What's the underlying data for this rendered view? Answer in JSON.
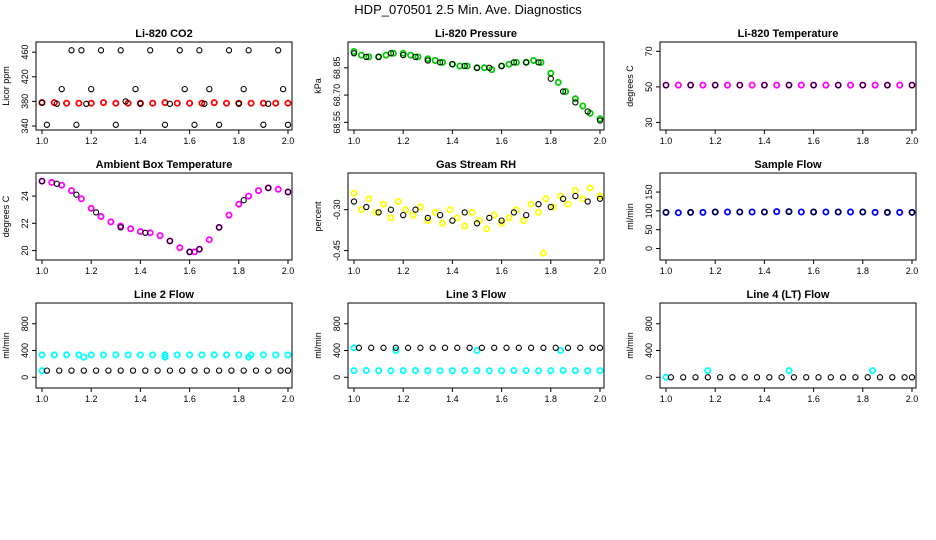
{
  "figure": {
    "title": "HDP_070501  2.5 Min. Ave. Diagnostics"
  },
  "chart_data": [
    {
      "id": "co2",
      "type": "scatter",
      "title": "Li-820 CO2",
      "ylabel": "Licor ppm",
      "xlim": [
        1.0,
        2.0
      ],
      "ylim": [
        340,
        470
      ],
      "xticks": [
        "1.0",
        "1.2",
        "1.4",
        "1.6",
        "1.8",
        "2.0"
      ],
      "yticks": [
        "340",
        "380",
        "420",
        "460"
      ],
      "series": [
        {
          "name": "",
          "color": "#ff0000",
          "x": [
            1.0,
            1.05,
            1.1,
            1.15,
            1.2,
            1.25,
            1.3,
            1.35,
            1.4,
            1.45,
            1.5,
            1.55,
            1.6,
            1.65,
            1.7,
            1.75,
            1.8,
            1.85,
            1.9,
            1.95,
            2.0
          ],
          "y": [
            378,
            378,
            377,
            377,
            377,
            378,
            377,
            377,
            377,
            377,
            378,
            377,
            377,
            377,
            378,
            377,
            377,
            377,
            377,
            377,
            377
          ]
        },
        {
          "name": "",
          "color": "#000000",
          "x": [
            1.0,
            1.02,
            1.06,
            1.08,
            1.12,
            1.14,
            1.16,
            1.18,
            1.2,
            1.24,
            1.3,
            1.32,
            1.34,
            1.38,
            1.4,
            1.44,
            1.5,
            1.52,
            1.56,
            1.58,
            1.62,
            1.64,
            1.66,
            1.68,
            1.72,
            1.76,
            1.8,
            1.82,
            1.84,
            1.9,
            1.92,
            1.96,
            1.98,
            2.0
          ],
          "y": [
            378,
            342,
            376,
            400,
            463,
            342,
            463,
            376,
            400,
            463,
            342,
            463,
            380,
            400,
            376,
            463,
            342,
            376,
            463,
            400,
            342,
            463,
            376,
            400,
            342,
            463,
            376,
            400,
            463,
            342,
            376,
            463,
            400,
            342
          ]
        }
      ]
    },
    {
      "id": "pressure",
      "type": "scatter",
      "title": "Li-820 Pressure",
      "ylabel": "kPa",
      "xlim": [
        1.0,
        2.0
      ],
      "ylim": [
        68.53,
        68.97
      ],
      "xticks": [
        "1.0",
        "1.2",
        "1.4",
        "1.6",
        "1.8",
        "2.0"
      ],
      "yticks": [
        "68.55",
        "68.70",
        "68.85"
      ],
      "series": [
        {
          "name": "",
          "color": "#00cc00",
          "x": [
            1.0,
            1.03,
            1.06,
            1.1,
            1.13,
            1.16,
            1.2,
            1.23,
            1.26,
            1.3,
            1.33,
            1.36,
            1.4,
            1.43,
            1.46,
            1.5,
            1.53,
            1.56,
            1.6,
            1.63,
            1.66,
            1.7,
            1.73,
            1.76,
            1.8,
            1.83,
            1.86,
            1.9,
            1.93,
            1.96,
            2.0
          ],
          "y": [
            68.94,
            68.92,
            68.91,
            68.91,
            68.92,
            68.93,
            68.93,
            68.92,
            68.91,
            68.9,
            68.89,
            68.88,
            68.87,
            68.86,
            68.86,
            68.85,
            68.85,
            68.84,
            68.86,
            68.87,
            68.88,
            68.88,
            68.89,
            68.88,
            68.82,
            68.77,
            68.72,
            68.68,
            68.64,
            68.6,
            68.57
          ]
        },
        {
          "name": "",
          "color": "#000000",
          "x": [
            1.0,
            1.05,
            1.1,
            1.15,
            1.2,
            1.25,
            1.3,
            1.35,
            1.4,
            1.45,
            1.5,
            1.55,
            1.6,
            1.65,
            1.7,
            1.75,
            1.8,
            1.85,
            1.9,
            1.95,
            2.0
          ],
          "y": [
            68.93,
            68.91,
            68.91,
            68.93,
            68.92,
            68.91,
            68.89,
            68.88,
            68.87,
            68.86,
            68.85,
            68.85,
            68.86,
            68.88,
            68.88,
            68.88,
            68.79,
            68.72,
            68.66,
            68.61,
            68.56
          ]
        }
      ]
    },
    {
      "id": "li820temp",
      "type": "scatter",
      "title": "Li-820 Temperature",
      "ylabel": "degrees C",
      "xlim": [
        1.0,
        2.0
      ],
      "ylim": [
        28,
        73
      ],
      "xticks": [
        "1.0",
        "1.2",
        "1.4",
        "1.6",
        "1.8",
        "2.0"
      ],
      "yticks": [
        "30",
        "50",
        "70"
      ],
      "series": [
        {
          "name": "",
          "color": "#ff00ff",
          "x": [
            1.0,
            1.05,
            1.1,
            1.15,
            1.2,
            1.25,
            1.3,
            1.35,
            1.4,
            1.45,
            1.5,
            1.55,
            1.6,
            1.65,
            1.7,
            1.75,
            1.8,
            1.85,
            1.9,
            1.95,
            2.0
          ],
          "y": [
            51,
            51,
            51,
            51,
            51,
            51,
            51,
            51,
            51,
            51,
            51,
            51,
            51,
            51,
            51,
            51,
            51,
            51,
            51,
            51,
            51
          ]
        },
        {
          "name": "",
          "color": "#000000",
          "x": [
            1.0,
            1.1,
            1.2,
            1.3,
            1.4,
            1.5,
            1.6,
            1.7,
            1.8,
            1.9,
            2.0
          ],
          "y": [
            51,
            51,
            51,
            51,
            51,
            51,
            51,
            51,
            51,
            51,
            51
          ]
        }
      ]
    },
    {
      "id": "boxtemp",
      "type": "scatter",
      "title": "Ambient Box Temperature",
      "ylabel": "degrees C",
      "xlim": [
        1.0,
        2.0
      ],
      "ylim": [
        19.6,
        25.4
      ],
      "xticks": [
        "1.0",
        "1.2",
        "1.4",
        "1.6",
        "1.8",
        "2.0"
      ],
      "yticks": [
        "20",
        "22",
        "24"
      ],
      "series": [
        {
          "name": "",
          "color": "#ff00ff",
          "x": [
            1.0,
            1.04,
            1.08,
            1.12,
            1.16,
            1.2,
            1.24,
            1.28,
            1.32,
            1.36,
            1.4,
            1.44,
            1.48,
            1.52,
            1.56,
            1.6,
            1.62,
            1.64,
            1.68,
            1.72,
            1.76,
            1.8,
            1.84,
            1.88,
            1.92,
            1.96,
            2.0
          ],
          "y": [
            25.1,
            25.0,
            24.8,
            24.4,
            23.8,
            23.1,
            22.5,
            22.1,
            21.8,
            21.6,
            21.4,
            21.3,
            21.1,
            20.7,
            20.2,
            19.9,
            19.9,
            20.1,
            20.8,
            21.7,
            22.6,
            23.4,
            24.0,
            24.4,
            24.6,
            24.5,
            24.3
          ]
        },
        {
          "name": "",
          "color": "#000000",
          "x": [
            1.0,
            1.06,
            1.14,
            1.22,
            1.32,
            1.42,
            1.52,
            1.6,
            1.64,
            1.72,
            1.82,
            1.92,
            2.0
          ],
          "y": [
            25.1,
            24.9,
            24.1,
            22.8,
            21.7,
            21.3,
            20.7,
            19.9,
            20.1,
            21.7,
            23.7,
            24.6,
            24.3
          ]
        }
      ]
    },
    {
      "id": "rh",
      "type": "scatter",
      "title": "Gas Stream RH",
      "ylabel": "percent",
      "xlim": [
        1.0,
        2.0
      ],
      "ylim": [
        -0.47,
        -0.18
      ],
      "xticks": [
        "1.0",
        "1.2",
        "1.4",
        "1.6",
        "1.8",
        "2.0"
      ],
      "yticks": [
        "-0.45",
        "-0.30"
      ],
      "series": [
        {
          "name": "",
          "color": "#ffff00",
          "x": [
            1.0,
            1.03,
            1.06,
            1.09,
            1.12,
            1.15,
            1.18,
            1.21,
            1.24,
            1.27,
            1.3,
            1.33,
            1.36,
            1.39,
            1.42,
            1.45,
            1.48,
            1.51,
            1.54,
            1.57,
            1.6,
            1.63,
            1.66,
            1.69,
            1.72,
            1.75,
            1.78,
            1.81,
            1.84,
            1.87,
            1.9,
            1.93,
            1.96,
            2.0,
            1.77
          ],
          "y": [
            -0.24,
            -0.3,
            -0.26,
            -0.31,
            -0.28,
            -0.33,
            -0.27,
            -0.3,
            -0.32,
            -0.29,
            -0.34,
            -0.31,
            -0.35,
            -0.3,
            -0.33,
            -0.36,
            -0.31,
            -0.34,
            -0.37,
            -0.32,
            -0.35,
            -0.33,
            -0.3,
            -0.34,
            -0.28,
            -0.31,
            -0.26,
            -0.29,
            -0.25,
            -0.28,
            -0.23,
            -0.26,
            -0.22,
            -0.25,
            -0.46
          ]
        },
        {
          "name": "",
          "color": "#000000",
          "x": [
            1.0,
            1.05,
            1.1,
            1.15,
            1.2,
            1.25,
            1.3,
            1.35,
            1.4,
            1.45,
            1.5,
            1.55,
            1.6,
            1.65,
            1.7,
            1.75,
            1.8,
            1.85,
            1.9,
            1.95,
            2.0
          ],
          "y": [
            -0.27,
            -0.29,
            -0.31,
            -0.3,
            -0.32,
            -0.3,
            -0.33,
            -0.32,
            -0.34,
            -0.31,
            -0.35,
            -0.33,
            -0.34,
            -0.31,
            -0.32,
            -0.28,
            -0.29,
            -0.26,
            -0.25,
            -0.27,
            -0.26
          ]
        }
      ]
    },
    {
      "id": "sampleflow",
      "type": "scatter",
      "title": "Sample Flow",
      "ylabel": "ml/min",
      "xlim": [
        1.0,
        2.0
      ],
      "ylim": [
        -20,
        190
      ],
      "xticks": [
        "1.0",
        "1.2",
        "1.4",
        "1.6",
        "1.8",
        "2.0"
      ],
      "yticks": [
        "0",
        "50",
        "100",
        "150"
      ],
      "series": [
        {
          "name": "",
          "color": "#0000ff",
          "x": [
            1.0,
            1.05,
            1.1,
            1.15,
            1.2,
            1.25,
            1.3,
            1.35,
            1.4,
            1.45,
            1.5,
            1.55,
            1.6,
            1.65,
            1.7,
            1.75,
            1.8,
            1.85,
            1.9,
            1.95,
            2.0
          ],
          "y": [
            96,
            95,
            96,
            96,
            97,
            97,
            97,
            97,
            97,
            98,
            98,
            97,
            97,
            97,
            97,
            97,
            97,
            96,
            96,
            96,
            96
          ]
        },
        {
          "name": "",
          "color": "#000000",
          "x": [
            1.0,
            1.1,
            1.2,
            1.3,
            1.4,
            1.5,
            1.6,
            1.7,
            1.8,
            1.9,
            2.0
          ],
          "y": [
            96,
            96,
            97,
            97,
            97,
            98,
            97,
            97,
            97,
            96,
            96
          ]
        }
      ]
    },
    {
      "id": "line2",
      "type": "scatter",
      "title": "Line 2 Flow",
      "ylabel": "ml/min",
      "xlim": [
        1.0,
        2.0
      ],
      "ylim": [
        -100,
        1050
      ],
      "xticks": [
        "1.0",
        "1.2",
        "1.4",
        "1.6",
        "1.8",
        "2.0"
      ],
      "yticks": [
        "0",
        "400",
        "800"
      ],
      "series": [
        {
          "name": "",
          "color": "#00ffff",
          "x": [
            1.0,
            1.05,
            1.1,
            1.15,
            1.2,
            1.25,
            1.3,
            1.35,
            1.4,
            1.45,
            1.5,
            1.55,
            1.6,
            1.65,
            1.7,
            1.75,
            1.8,
            1.85,
            1.9,
            1.95,
            2.0,
            1.0,
            1.17,
            1.5,
            1.84
          ],
          "y": [
            335,
            334,
            336,
            335,
            334,
            335,
            336,
            335,
            334,
            335,
            336,
            335,
            334,
            335,
            336,
            335,
            334,
            335,
            336,
            335,
            334,
            100,
            300,
            300,
            300
          ]
        },
        {
          "name": "",
          "color": "#000000",
          "x": [
            1.02,
            1.07,
            1.12,
            1.17,
            1.22,
            1.27,
            1.32,
            1.37,
            1.42,
            1.47,
            1.52,
            1.57,
            1.62,
            1.67,
            1.72,
            1.77,
            1.82,
            1.87,
            1.92,
            1.97,
            2.0
          ],
          "y": [
            100,
            100,
            100,
            100,
            100,
            100,
            100,
            100,
            100,
            100,
            100,
            100,
            100,
            100,
            100,
            100,
            100,
            100,
            100,
            100,
            100
          ]
        }
      ]
    },
    {
      "id": "line3",
      "type": "scatter",
      "title": "Line 3 Flow",
      "ylabel": "ml/min",
      "xlim": [
        1.0,
        2.0
      ],
      "ylim": [
        -100,
        1050
      ],
      "xticks": [
        "1.0",
        "1.2",
        "1.4",
        "1.6",
        "1.8",
        "2.0"
      ],
      "yticks": [
        "0",
        "400",
        "800"
      ],
      "series": [
        {
          "name": "",
          "color": "#00ffff",
          "x": [
            1.0,
            1.05,
            1.1,
            1.15,
            1.2,
            1.25,
            1.3,
            1.35,
            1.4,
            1.45,
            1.5,
            1.55,
            1.6,
            1.65,
            1.7,
            1.75,
            1.8,
            1.85,
            1.9,
            1.95,
            2.0,
            1.0,
            1.17,
            1.5,
            1.84
          ],
          "y": [
            100,
            101,
            100,
            99,
            100,
            101,
            100,
            99,
            100,
            101,
            100,
            99,
            100,
            101,
            100,
            99,
            100,
            101,
            100,
            99,
            100,
            440,
            400,
            400,
            400
          ]
        },
        {
          "name": "",
          "color": "#000000",
          "x": [
            1.02,
            1.07,
            1.12,
            1.17,
            1.22,
            1.27,
            1.32,
            1.37,
            1.42,
            1.47,
            1.52,
            1.57,
            1.62,
            1.67,
            1.72,
            1.77,
            1.82,
            1.87,
            1.92,
            1.97,
            2.0
          ],
          "y": [
            440,
            440,
            440,
            440,
            440,
            440,
            440,
            440,
            440,
            440,
            440,
            440,
            440,
            440,
            440,
            440,
            440,
            440,
            440,
            440,
            440
          ]
        }
      ]
    },
    {
      "id": "line4",
      "type": "scatter",
      "title": "Line 4 (LT) Flow",
      "ylabel": "ml/min",
      "xlim": [
        1.0,
        2.0
      ],
      "ylim": [
        -100,
        1050
      ],
      "xticks": [
        "1.0",
        "1.2",
        "1.4",
        "1.6",
        "1.8",
        "2.0"
      ],
      "yticks": [
        "0",
        "400",
        "800"
      ],
      "series": [
        {
          "name": "",
          "color": "#00ffff",
          "x": [
            1.0,
            1.17,
            1.5,
            1.84
          ],
          "y": [
            0,
            100,
            100,
            100
          ]
        },
        {
          "name": "",
          "color": "#000000",
          "x": [
            1.02,
            1.07,
            1.12,
            1.17,
            1.22,
            1.27,
            1.32,
            1.37,
            1.42,
            1.47,
            1.52,
            1.57,
            1.62,
            1.67,
            1.72,
            1.77,
            1.82,
            1.87,
            1.92,
            1.97,
            2.0
          ],
          "y": [
            0,
            0,
            0,
            0,
            0,
            0,
            0,
            0,
            0,
            0,
            0,
            0,
            0,
            0,
            0,
            0,
            0,
            0,
            0,
            0,
            0
          ]
        }
      ]
    }
  ]
}
